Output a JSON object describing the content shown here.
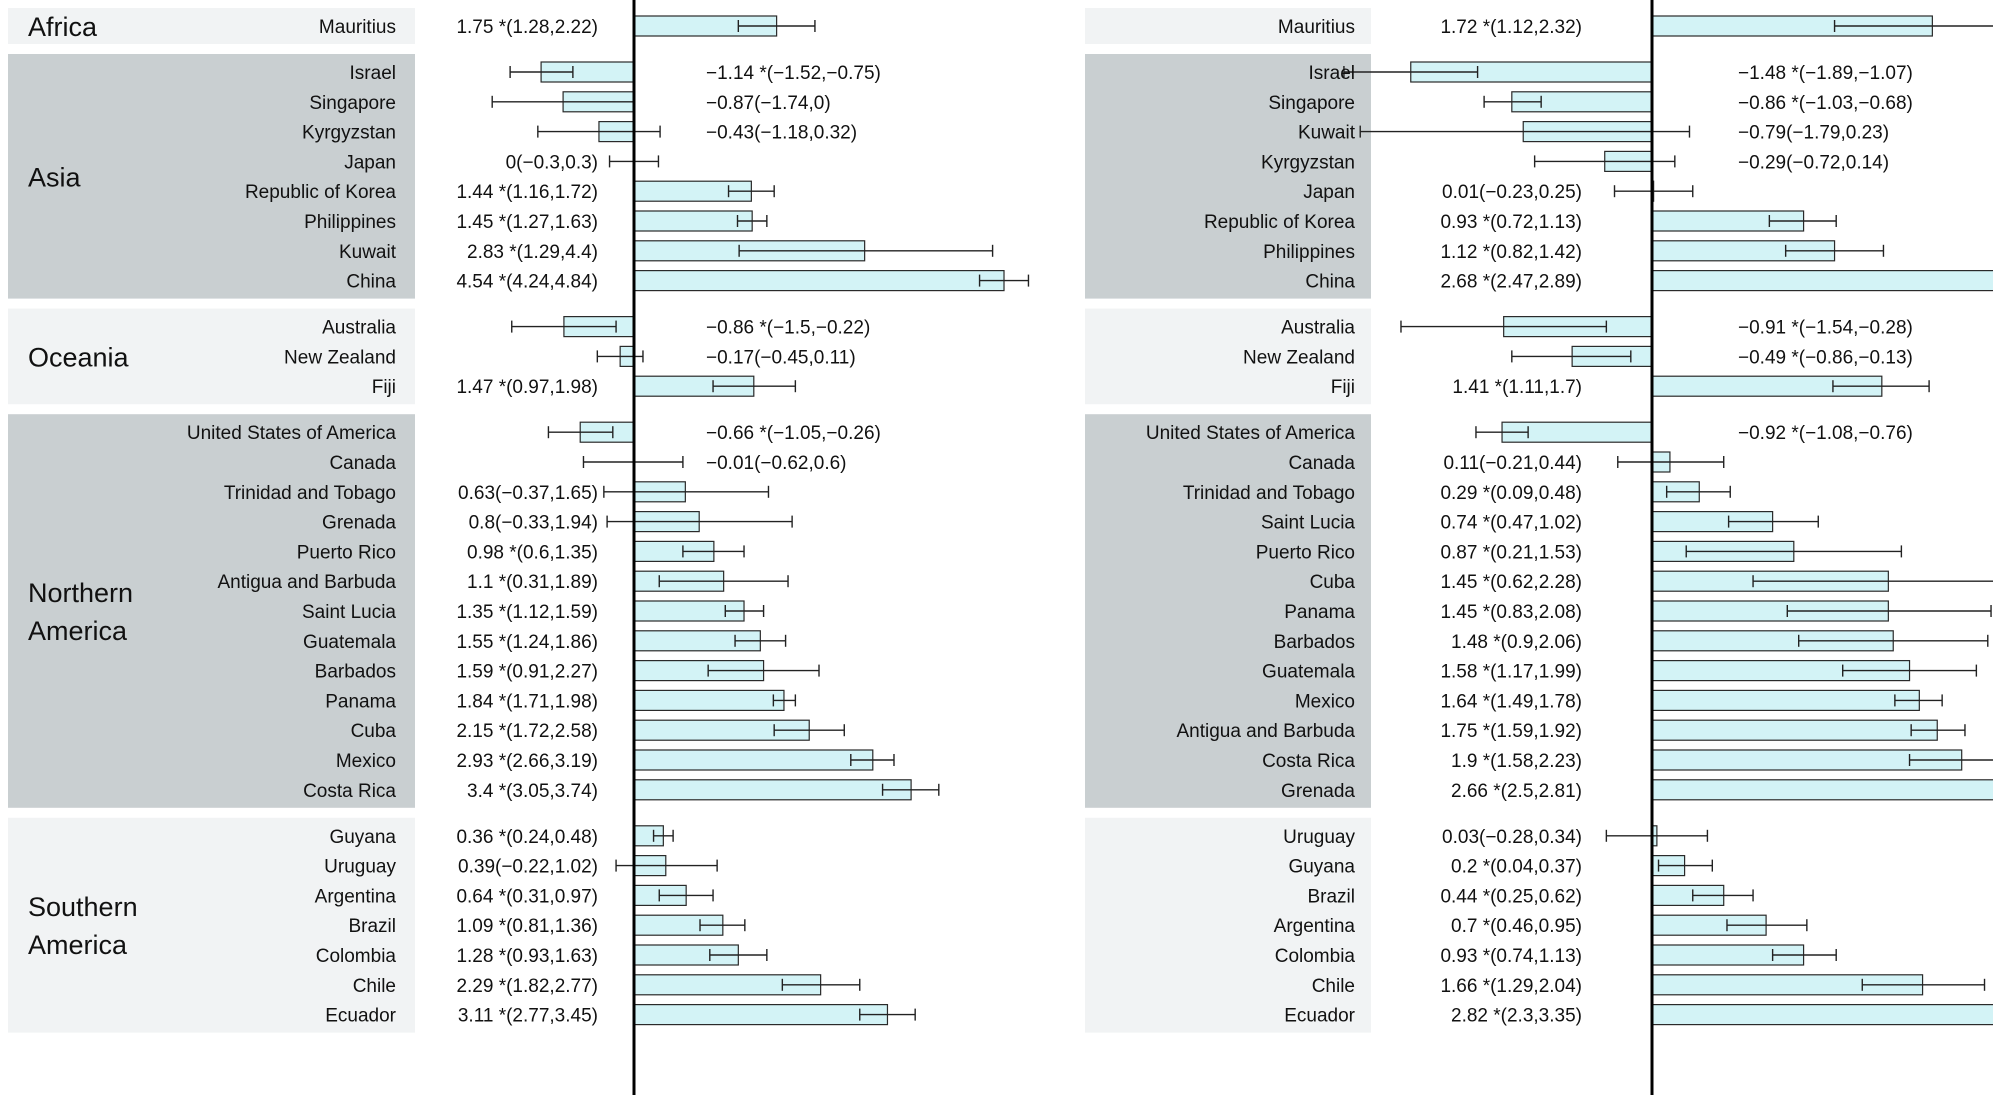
{
  "chart_data": [
    {
      "type": "bar",
      "orientation": "horizontal",
      "error_bars": true,
      "grid": false,
      "xlim": [
        -2.0,
        5.0
      ],
      "regions": [
        {
          "name": "Africa",
          "shaded": false,
          "rows": [
            {
              "country": "Mauritius",
              "value": 1.75,
              "low": 1.28,
              "high": 2.22,
              "label": "1.75 *(1.28,2.22)"
            }
          ]
        },
        {
          "name": "Asia",
          "shaded": true,
          "rows": [
            {
              "country": "Israel",
              "value": -1.14,
              "low": -1.52,
              "high": -0.75,
              "label": "−1.14 *(−1.52,−0.75)"
            },
            {
              "country": "Singapore",
              "value": -0.87,
              "low": -1.74,
              "high": 0,
              "label": "−0.87(−1.74,0)"
            },
            {
              "country": "Kyrgyzstan",
              "value": -0.43,
              "low": -1.18,
              "high": 0.32,
              "label": "−0.43(−1.18,0.32)"
            },
            {
              "country": "Japan",
              "value": 0,
              "low": -0.3,
              "high": 0.3,
              "label": "0(−0.3,0.3)"
            },
            {
              "country": "Republic of Korea",
              "value": 1.44,
              "low": 1.16,
              "high": 1.72,
              "label": "1.44 *(1.16,1.72)"
            },
            {
              "country": "Philippines",
              "value": 1.45,
              "low": 1.27,
              "high": 1.63,
              "label": "1.45 *(1.27,1.63)"
            },
            {
              "country": "Kuwait",
              "value": 2.83,
              "low": 1.29,
              "high": 4.4,
              "label": "2.83 *(1.29,4.4)"
            },
            {
              "country": "China",
              "value": 4.54,
              "low": 4.24,
              "high": 4.84,
              "label": "4.54 *(4.24,4.84)"
            }
          ]
        },
        {
          "name": "Oceania",
          "shaded": false,
          "rows": [
            {
              "country": "Australia",
              "value": -0.86,
              "low": -1.5,
              "high": -0.22,
              "label": "−0.86 *(−1.5,−0.22)"
            },
            {
              "country": "New Zealand",
              "value": -0.17,
              "low": -0.45,
              "high": 0.11,
              "label": "−0.17(−0.45,0.11)"
            },
            {
              "country": "Fiji",
              "value": 1.47,
              "low": 0.97,
              "high": 1.98,
              "label": "1.47 *(0.97,1.98)"
            }
          ]
        },
        {
          "name": "Northern America",
          "shaded": true,
          "rows": [
            {
              "country": "United States of America",
              "value": -0.66,
              "low": -1.05,
              "high": -0.26,
              "label": "−0.66 *(−1.05,−0.26)"
            },
            {
              "country": "Canada",
              "value": -0.01,
              "low": -0.62,
              "high": 0.6,
              "label": "−0.01(−0.62,0.6)"
            },
            {
              "country": "Trinidad and Tobago",
              "value": 0.63,
              "low": -0.37,
              "high": 1.65,
              "label": "0.63(−0.37,1.65)"
            },
            {
              "country": "Grenada",
              "value": 0.8,
              "low": -0.33,
              "high": 1.94,
              "label": "0.8(−0.33,1.94)"
            },
            {
              "country": "Puerto Rico",
              "value": 0.98,
              "low": 0.6,
              "high": 1.35,
              "label": "0.98 *(0.6,1.35)"
            },
            {
              "country": "Antigua and Barbuda",
              "value": 1.1,
              "low": 0.31,
              "high": 1.89,
              "label": "1.1 *(0.31,1.89)"
            },
            {
              "country": "Saint Lucia",
              "value": 1.35,
              "low": 1.12,
              "high": 1.59,
              "label": "1.35 *(1.12,1.59)"
            },
            {
              "country": "Guatemala",
              "value": 1.55,
              "low": 1.24,
              "high": 1.86,
              "label": "1.55 *(1.24,1.86)"
            },
            {
              "country": "Barbados",
              "value": 1.59,
              "low": 0.91,
              "high": 2.27,
              "label": "1.59 *(0.91,2.27)"
            },
            {
              "country": "Panama",
              "value": 1.84,
              "low": 1.71,
              "high": 1.98,
              "label": "1.84 *(1.71,1.98)"
            },
            {
              "country": "Cuba",
              "value": 2.15,
              "low": 1.72,
              "high": 2.58,
              "label": "2.15 *(1.72,2.58)"
            },
            {
              "country": "Mexico",
              "value": 2.93,
              "low": 2.66,
              "high": 3.19,
              "label": "2.93 *(2.66,3.19)"
            },
            {
              "country": "Costa Rica",
              "value": 3.4,
              "low": 3.05,
              "high": 3.74,
              "label": "3.4 *(3.05,3.74)"
            }
          ]
        },
        {
          "name": "Southern America",
          "shaded": false,
          "rows": [
            {
              "country": "Guyana",
              "value": 0.36,
              "low": 0.24,
              "high": 0.48,
              "label": "0.36 *(0.24,0.48)"
            },
            {
              "country": "Uruguay",
              "value": 0.39,
              "low": -0.22,
              "high": 1.02,
              "label": "0.39(−0.22,1.02)"
            },
            {
              "country": "Argentina",
              "value": 0.64,
              "low": 0.31,
              "high": 0.97,
              "label": "0.64 *(0.31,0.97)"
            },
            {
              "country": "Brazil",
              "value": 1.09,
              "low": 0.81,
              "high": 1.36,
              "label": "1.09 *(0.81,1.36)"
            },
            {
              "country": "Colombia",
              "value": 1.28,
              "low": 0.93,
              "high": 1.63,
              "label": "1.28 *(0.93,1.63)"
            },
            {
              "country": "Chile",
              "value": 2.29,
              "low": 1.82,
              "high": 2.77,
              "label": "2.29 *(1.82,2.77)"
            },
            {
              "country": "Ecuador",
              "value": 3.11,
              "low": 2.77,
              "high": 3.45,
              "label": "3.11 *(2.77,3.45)"
            }
          ]
        }
      ]
    },
    {
      "type": "bar",
      "orientation": "horizontal",
      "error_bars": true,
      "grid": false,
      "xlim": [
        -2.0,
        3.6
      ],
      "regions": [
        {
          "name": "Africa",
          "shaded": false,
          "rows": [
            {
              "country": "Mauritius",
              "value": 1.72,
              "low": 1.12,
              "high": 2.32,
              "label": "1.72 *(1.12,2.32)"
            }
          ]
        },
        {
          "name": "Asia",
          "shaded": true,
          "rows": [
            {
              "country": "Israel",
              "value": -1.48,
              "low": -1.89,
              "high": -1.07,
              "label": "−1.48 *(−1.89,−1.07)"
            },
            {
              "country": "Singapore",
              "value": -0.86,
              "low": -1.03,
              "high": -0.68,
              "label": "−0.86 *(−1.03,−0.68)"
            },
            {
              "country": "Kuwait",
              "value": -0.79,
              "low": -1.79,
              "high": 0.23,
              "label": "−0.79(−1.79,0.23)"
            },
            {
              "country": "Kyrgyzstan",
              "value": -0.29,
              "low": -0.72,
              "high": 0.14,
              "label": "−0.29(−0.72,0.14)"
            },
            {
              "country": "Japan",
              "value": 0.01,
              "low": -0.23,
              "high": 0.25,
              "label": "0.01(−0.23,0.25)"
            },
            {
              "country": "Republic of Korea",
              "value": 0.93,
              "low": 0.72,
              "high": 1.13,
              "label": "0.93 *(0.72,1.13)"
            },
            {
              "country": "Philippines",
              "value": 1.12,
              "low": 0.82,
              "high": 1.42,
              "label": "1.12 *(0.82,1.42)"
            },
            {
              "country": "China",
              "value": 2.68,
              "low": 2.47,
              "high": 2.89,
              "label": "2.68 *(2.47,2.89)"
            }
          ]
        },
        {
          "name": "",
          "shaded": false,
          "rows": [
            {
              "country": "Australia",
              "value": -0.91,
              "low": -1.54,
              "high": -0.28,
              "label": "−0.91 *(−1.54,−0.28)"
            },
            {
              "country": "New Zealand",
              "value": -0.49,
              "low": -0.86,
              "high": -0.13,
              "label": "−0.49 *(−0.86,−0.13)"
            },
            {
              "country": "Fiji",
              "value": 1.41,
              "low": 1.11,
              "high": 1.7,
              "label": "1.41 *(1.11,1.7)"
            }
          ]
        },
        {
          "name": "",
          "shaded": true,
          "rows": [
            {
              "country": "United States of America",
              "value": -0.92,
              "low": -1.08,
              "high": -0.76,
              "label": "−0.92 *(−1.08,−0.76)"
            },
            {
              "country": "Canada",
              "value": 0.11,
              "low": -0.21,
              "high": 0.44,
              "label": "0.11(−0.21,0.44)"
            },
            {
              "country": "Trinidad and Tobago",
              "value": 0.29,
              "low": 0.09,
              "high": 0.48,
              "label": "0.29 *(0.09,0.48)"
            },
            {
              "country": "Saint Lucia",
              "value": 0.74,
              "low": 0.47,
              "high": 1.02,
              "label": "0.74 *(0.47,1.02)"
            },
            {
              "country": "Puerto Rico",
              "value": 0.87,
              "low": 0.21,
              "high": 1.53,
              "label": "0.87 *(0.21,1.53)"
            },
            {
              "country": "Cuba",
              "value": 1.45,
              "low": 0.62,
              "high": 2.28,
              "label": "1.45 *(0.62,2.28)"
            },
            {
              "country": "Panama",
              "value": 1.45,
              "low": 0.83,
              "high": 2.08,
              "label": "1.45 *(0.83,2.08)"
            },
            {
              "country": "Barbados",
              "value": 1.48,
              "low": 0.9,
              "high": 2.06,
              "label": "1.48 *(0.9,2.06)"
            },
            {
              "country": "Guatemala",
              "value": 1.58,
              "low": 1.17,
              "high": 1.99,
              "label": "1.58 *(1.17,1.99)"
            },
            {
              "country": "Mexico",
              "value": 1.64,
              "low": 1.49,
              "high": 1.78,
              "label": "1.64 *(1.49,1.78)"
            },
            {
              "country": "Antigua and Barbuda",
              "value": 1.75,
              "low": 1.59,
              "high": 1.92,
              "label": "1.75 *(1.59,1.92)"
            },
            {
              "country": "Costa Rica",
              "value": 1.9,
              "low": 1.58,
              "high": 2.23,
              "label": "1.9 *(1.58,2.23)"
            },
            {
              "country": "Grenada",
              "value": 2.66,
              "low": 2.5,
              "high": 2.81,
              "label": "2.66 *(2.5,2.81)"
            }
          ]
        },
        {
          "name": "",
          "shaded": false,
          "rows": [
            {
              "country": "Uruguay",
              "value": 0.03,
              "low": -0.28,
              "high": 0.34,
              "label": "0.03(−0.28,0.34)"
            },
            {
              "country": "Guyana",
              "value": 0.2,
              "low": 0.04,
              "high": 0.37,
              "label": "0.2 *(0.04,0.37)"
            },
            {
              "country": "Brazil",
              "value": 0.44,
              "low": 0.25,
              "high": 0.62,
              "label": "0.44 *(0.25,0.62)"
            },
            {
              "country": "Argentina",
              "value": 0.7,
              "low": 0.46,
              "high": 0.95,
              "label": "0.7 *(0.46,0.95)"
            },
            {
              "country": "Colombia",
              "value": 0.93,
              "low": 0.74,
              "high": 1.13,
              "label": "0.93 *(0.74,1.13)"
            },
            {
              "country": "Chile",
              "value": 1.66,
              "low": 1.29,
              "high": 2.04,
              "label": "1.66 *(1.29,2.04)"
            },
            {
              "country": "Ecuador",
              "value": 2.82,
              "low": 2.3,
              "high": 3.35,
              "label": "2.82 *(2.3,3.35)"
            }
          ]
        }
      ]
    }
  ],
  "colors": {
    "bar_fill": "#d3f3f6",
    "bar_stroke": "#2a2a2a",
    "band_shaded": "#c9cfd1",
    "band_light": "#f1f3f4"
  }
}
